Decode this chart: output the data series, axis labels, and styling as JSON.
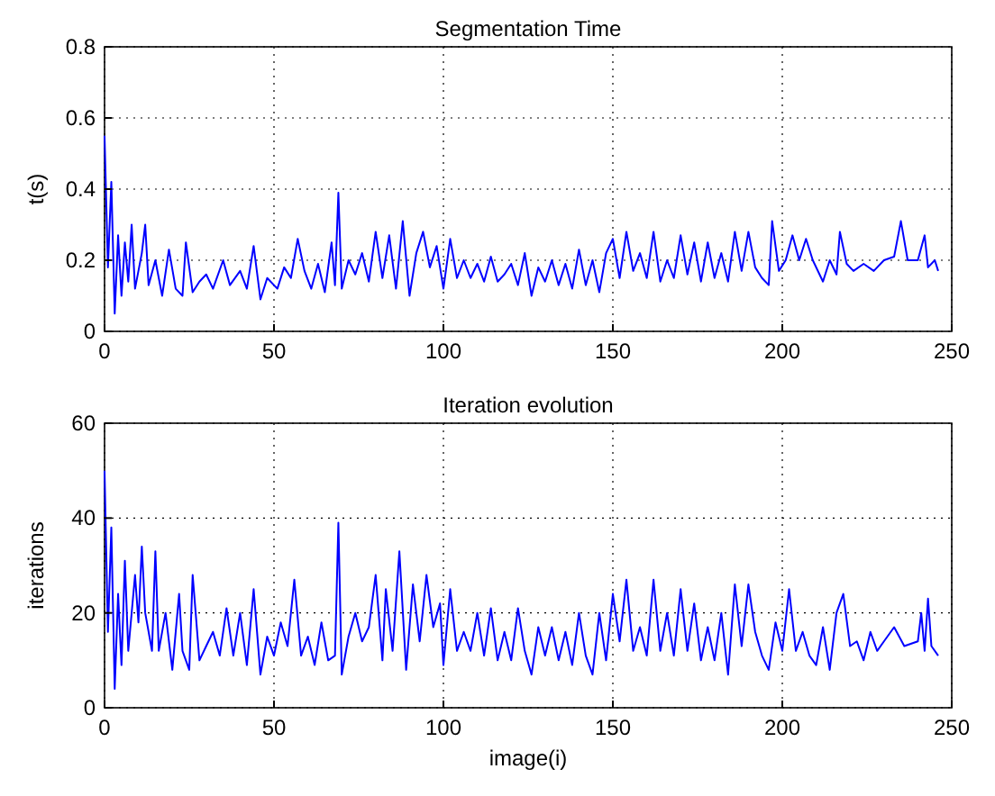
{
  "chart_data": [
    {
      "type": "line",
      "title": "Segmentation Time",
      "ylabel": "t(s)",
      "xlim": [
        0,
        250
      ],
      "xticks": [
        0,
        50,
        100,
        150,
        200,
        250
      ],
      "ylim": [
        0,
        0.8
      ],
      "yticks": [
        0,
        0.2,
        0.4,
        0.6,
        0.8
      ],
      "grid": true,
      "series": [
        {
          "color": "#0000ff",
          "x": [
            0,
            1,
            2,
            3,
            4,
            5,
            6,
            7,
            8,
            9,
            11,
            12,
            13,
            15,
            17,
            19,
            21,
            23,
            24,
            26,
            28,
            30,
            32,
            35,
            37,
            40,
            42,
            44,
            46,
            48,
            51,
            53,
            55,
            57,
            59,
            61,
            63,
            65,
            67,
            68,
            69,
            70,
            72,
            74,
            76,
            78,
            80,
            82,
            84,
            86,
            88,
            90,
            92,
            94,
            96,
            98,
            100,
            102,
            104,
            106,
            108,
            110,
            112,
            114,
            116,
            118,
            120,
            122,
            124,
            126,
            128,
            130,
            132,
            134,
            136,
            138,
            140,
            142,
            144,
            146,
            148,
            150,
            152,
            154,
            156,
            158,
            160,
            162,
            164,
            166,
            168,
            170,
            172,
            174,
            176,
            178,
            180,
            182,
            184,
            186,
            188,
            190,
            192,
            194,
            196,
            197,
            199,
            201,
            203,
            205,
            207,
            209,
            212,
            214,
            216,
            217,
            219,
            221,
            224,
            227,
            230,
            233,
            235,
            237,
            240,
            242,
            243,
            245,
            246
          ],
          "values": [
            0.55,
            0.18,
            0.42,
            0.05,
            0.27,
            0.1,
            0.25,
            0.14,
            0.3,
            0.12,
            0.22,
            0.3,
            0.13,
            0.2,
            0.1,
            0.23,
            0.12,
            0.1,
            0.25,
            0.11,
            0.14,
            0.16,
            0.12,
            0.2,
            0.13,
            0.17,
            0.12,
            0.24,
            0.09,
            0.15,
            0.12,
            0.18,
            0.15,
            0.26,
            0.17,
            0.12,
            0.19,
            0.11,
            0.25,
            0.13,
            0.39,
            0.12,
            0.2,
            0.16,
            0.22,
            0.14,
            0.28,
            0.15,
            0.27,
            0.12,
            0.31,
            0.1,
            0.22,
            0.28,
            0.18,
            0.24,
            0.12,
            0.26,
            0.15,
            0.2,
            0.15,
            0.19,
            0.14,
            0.21,
            0.14,
            0.16,
            0.19,
            0.13,
            0.22,
            0.1,
            0.18,
            0.14,
            0.2,
            0.13,
            0.19,
            0.12,
            0.23,
            0.13,
            0.2,
            0.11,
            0.22,
            0.26,
            0.15,
            0.28,
            0.17,
            0.22,
            0.15,
            0.28,
            0.14,
            0.2,
            0.15,
            0.27,
            0.16,
            0.25,
            0.14,
            0.25,
            0.15,
            0.22,
            0.14,
            0.28,
            0.17,
            0.28,
            0.18,
            0.15,
            0.13,
            0.31,
            0.17,
            0.2,
            0.27,
            0.2,
            0.26,
            0.2,
            0.14,
            0.2,
            0.16,
            0.28,
            0.19,
            0.17,
            0.19,
            0.17,
            0.2,
            0.21,
            0.31,
            0.2,
            0.2,
            0.27,
            0.18,
            0.2,
            0.17
          ]
        }
      ]
    },
    {
      "type": "line",
      "title": "Iteration evolution",
      "xlabel": "image(i)",
      "ylabel": "iterations",
      "xlim": [
        0,
        250
      ],
      "xticks": [
        0,
        50,
        100,
        150,
        200,
        250
      ],
      "ylim": [
        0,
        60
      ],
      "yticks": [
        0,
        20,
        40,
        60
      ],
      "grid": true,
      "series": [
        {
          "color": "#0000ff",
          "x": [
            0,
            1,
            2,
            3,
            4,
            5,
            6,
            7,
            9,
            10,
            11,
            12,
            14,
            15,
            16,
            18,
            20,
            22,
            23,
            25,
            26,
            28,
            30,
            32,
            34,
            36,
            38,
            40,
            42,
            44,
            46,
            48,
            50,
            52,
            54,
            56,
            58,
            60,
            62,
            64,
            66,
            68,
            69,
            70,
            72,
            74,
            76,
            78,
            80,
            82,
            83,
            85,
            87,
            89,
            91,
            93,
            95,
            97,
            99,
            100,
            102,
            104,
            106,
            108,
            110,
            112,
            114,
            116,
            118,
            120,
            122,
            124,
            126,
            128,
            130,
            132,
            134,
            136,
            138,
            140,
            142,
            144,
            146,
            148,
            150,
            152,
            154,
            156,
            158,
            160,
            162,
            164,
            166,
            168,
            170,
            172,
            174,
            176,
            178,
            180,
            182,
            184,
            186,
            188,
            190,
            192,
            194,
            196,
            198,
            200,
            202,
            204,
            206,
            208,
            210,
            212,
            214,
            216,
            218,
            220,
            222,
            224,
            226,
            228,
            230,
            233,
            236,
            240,
            241,
            242,
            243,
            244,
            246
          ],
          "values": [
            50,
            16,
            38,
            4,
            24,
            9,
            31,
            12,
            28,
            18,
            34,
            20,
            12,
            33,
            12,
            20,
            8,
            24,
            12,
            8,
            28,
            10,
            13,
            16,
            11,
            21,
            11,
            20,
            9,
            25,
            7,
            15,
            11,
            18,
            13,
            27,
            11,
            15,
            9,
            18,
            10,
            11,
            39,
            7,
            15,
            20,
            14,
            17,
            28,
            10,
            25,
            12,
            33,
            8,
            26,
            14,
            28,
            17,
            22,
            9,
            25,
            12,
            16,
            12,
            20,
            11,
            21,
            10,
            16,
            10,
            21,
            12,
            7,
            17,
            11,
            17,
            10,
            16,
            9,
            20,
            11,
            7,
            20,
            10,
            24,
            14,
            27,
            12,
            17,
            11,
            27,
            12,
            20,
            11,
            25,
            12,
            22,
            10,
            17,
            10,
            20,
            7,
            26,
            13,
            26,
            16,
            11,
            8,
            18,
            12,
            25,
            12,
            16,
            11,
            9,
            17,
            8,
            20,
            24,
            13,
            14,
            10,
            16,
            12,
            14,
            17,
            13,
            14,
            20,
            12,
            23,
            13,
            11
          ]
        }
      ]
    }
  ]
}
